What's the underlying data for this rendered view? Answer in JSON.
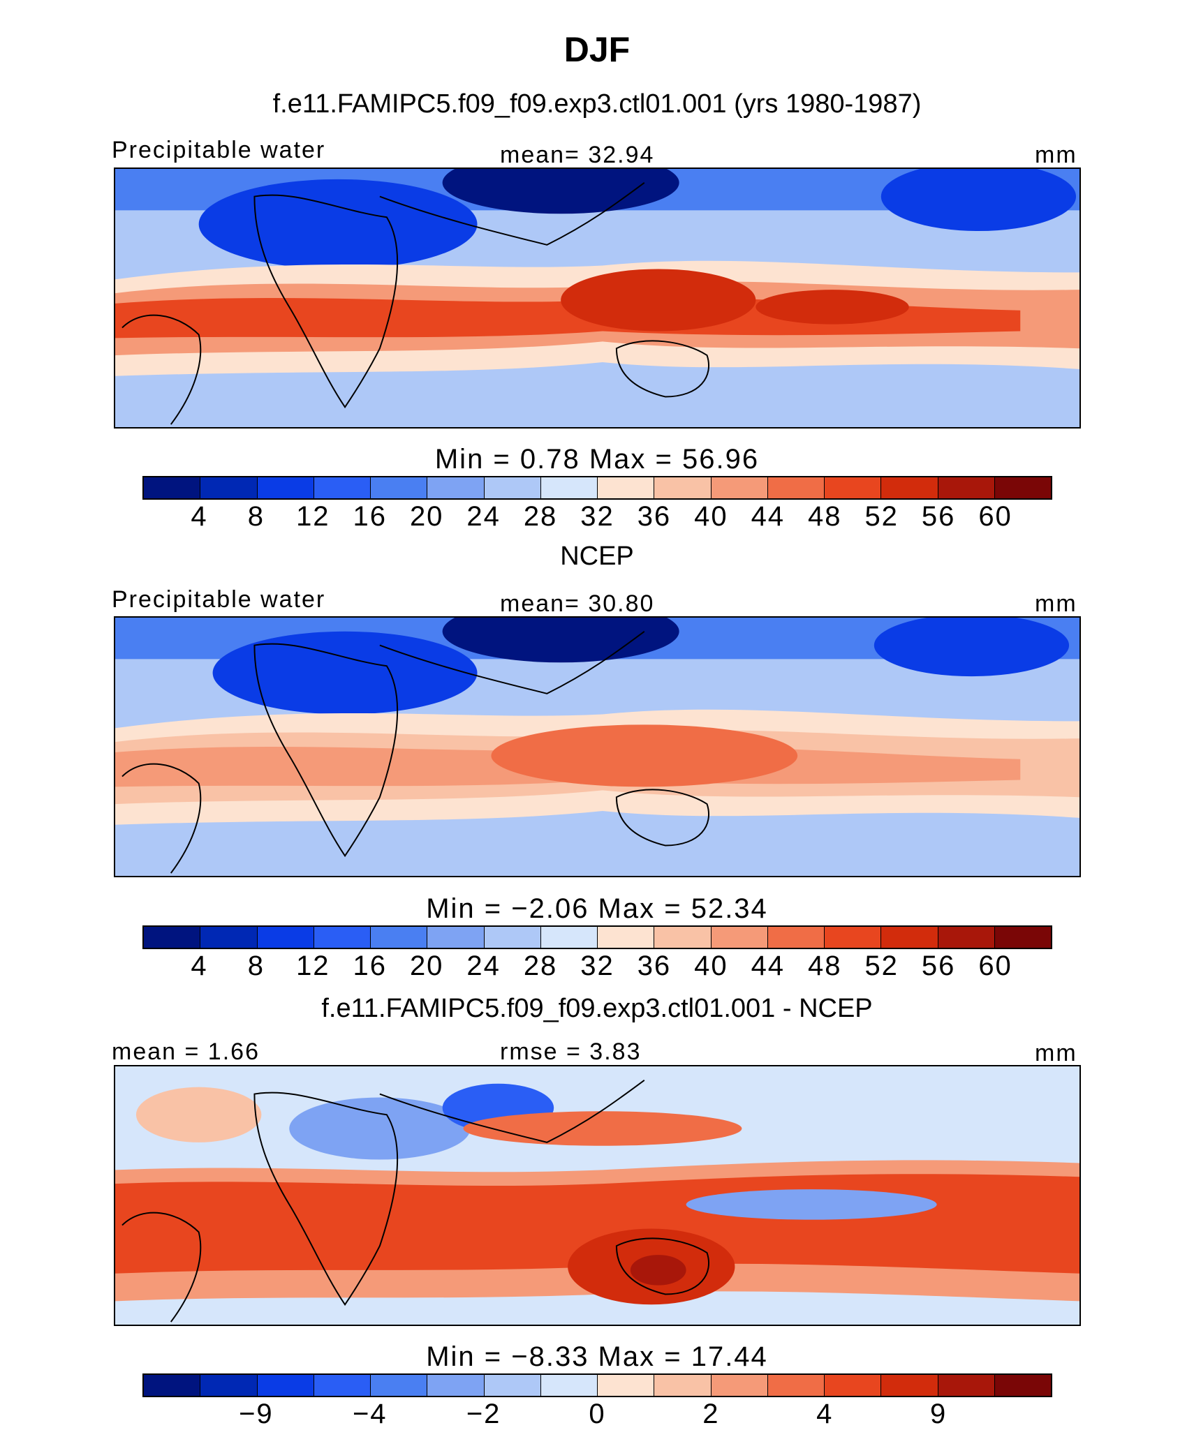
{
  "title": "DJF",
  "panels": [
    {
      "subtitle": "f.e11.FAMIPC5.f09_f09.exp3.ctl01.001 (yrs 1980-1987)",
      "left_label": "Precipitable water",
      "center_label": "mean=   32.94",
      "right_label": "mm",
      "min_max": "Min  =     0.78  Max  =    56.96",
      "colorbar_labels": [
        "4",
        "8",
        "12",
        "16",
        "20",
        "24",
        "28",
        "32",
        "36",
        "40",
        "44",
        "48",
        "52",
        "56",
        "60"
      ]
    },
    {
      "subtitle": "NCEP",
      "left_label": "Precipitable water",
      "center_label": "mean=   30.80",
      "right_label": "mm",
      "min_max": "Min  =   −2.06  Max  =    52.34",
      "colorbar_labels": [
        "4",
        "8",
        "12",
        "16",
        "20",
        "24",
        "28",
        "32",
        "36",
        "40",
        "44",
        "48",
        "52",
        "56",
        "60"
      ]
    },
    {
      "subtitle": "f.e11.FAMIPC5.f09_f09.exp3.ctl01.001 - NCEP",
      "left_label": "mean =    1.66",
      "center_label": "rmse =    3.83",
      "right_label": "mm",
      "min_max": "Min  =   −8.33  Max  =    17.44",
      "colorbar_labels": [
        "−9",
        "",
        "−4",
        "",
        "−2",
        "",
        "0",
        "",
        "2",
        "",
        "4",
        "",
        "9",
        "",
        ""
      ]
    }
  ],
  "colors": {
    "palette": [
      "#00147f",
      "#0028b4",
      "#0a3ce6",
      "#2a5ef5",
      "#4a7ff2",
      "#7ea3f3",
      "#aec8f7",
      "#d6e6fb",
      "#fde3d1",
      "#f9c2a6",
      "#f59a78",
      "#f06d46",
      "#e8461f",
      "#d22c0c",
      "#a8170a",
      "#7a0606"
    ],
    "coastline": "#000000"
  }
}
